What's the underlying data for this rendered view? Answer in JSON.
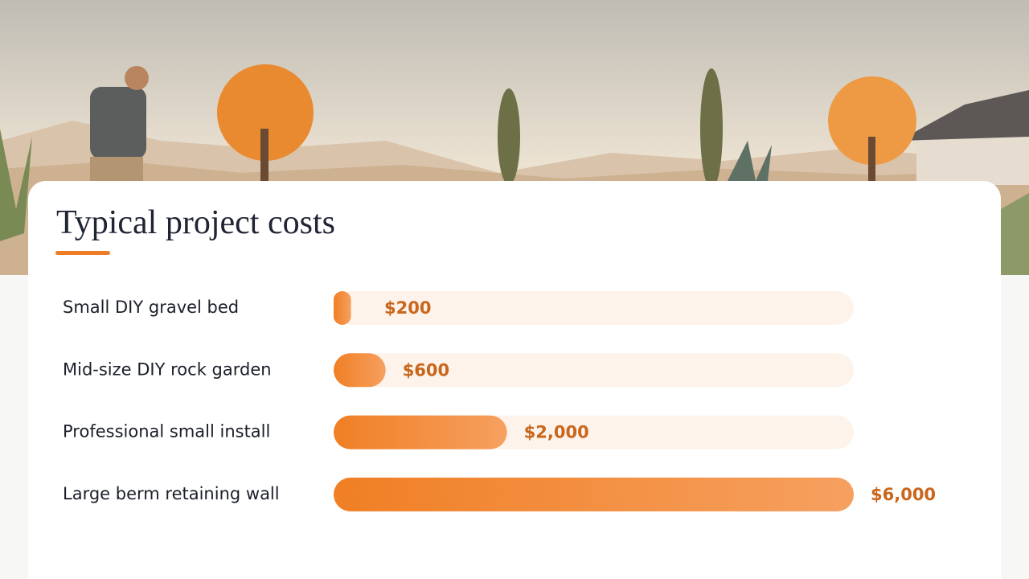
{
  "chart_data": {
    "type": "bar",
    "orientation": "horizontal",
    "title": "Typical project costs",
    "categories": [
      "Small DIY gravel bed",
      "Mid-size DIY rock garden",
      "Professional small install",
      "Large berm retaining wall"
    ],
    "values": [
      200,
      600,
      2000,
      6000
    ],
    "value_labels": [
      "$200",
      "$600",
      "$2,000",
      "$6,000"
    ],
    "color": "#f07f24"
  }
}
